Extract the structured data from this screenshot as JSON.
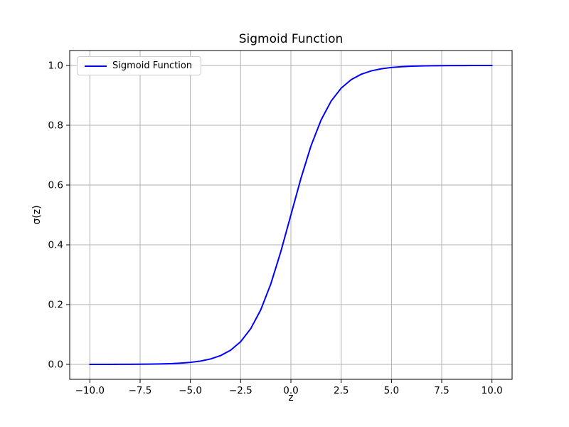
{
  "chart_data": {
    "type": "line",
    "title": "Sigmoid Function",
    "xlabel": "z",
    "ylabel": "σ(z)",
    "xlim": [
      -11,
      11
    ],
    "ylim": [
      -0.05,
      1.05
    ],
    "grid": true,
    "legend_position": "upper left",
    "colors": {
      "line": "#0000ff",
      "grid": "#b0b0b0",
      "axes": "#000000",
      "background": "#ffffff",
      "legend_border": "#cccccc"
    },
    "xticks": {
      "values": [
        -10,
        -7.5,
        -5,
        -2.5,
        0,
        2.5,
        5,
        7.5,
        10
      ],
      "labels": [
        "−10.0",
        "−7.5",
        "−5.0",
        "−2.5",
        "0.0",
        "2.5",
        "5.0",
        "7.5",
        "10.0"
      ]
    },
    "yticks": {
      "values": [
        0,
        0.2,
        0.4,
        0.6,
        0.8,
        1.0
      ],
      "labels": [
        "0.0",
        "0.2",
        "0.4",
        "0.6",
        "0.8",
        "1.0"
      ]
    },
    "series": [
      {
        "name": "Sigmoid Function",
        "color": "#0000ff",
        "x": [
          -10,
          -9.5,
          -9,
          -8.5,
          -8,
          -7.5,
          -7,
          -6.5,
          -6,
          -5.5,
          -5,
          -4.5,
          -4,
          -3.5,
          -3,
          -2.5,
          -2,
          -1.5,
          -1,
          -0.5,
          0,
          0.5,
          1,
          1.5,
          2,
          2.5,
          3,
          3.5,
          4,
          4.5,
          5,
          5.5,
          6,
          6.5,
          7,
          7.5,
          8,
          8.5,
          9,
          9.5,
          10
        ],
        "y": [
          0.0,
          0.0001,
          0.0001,
          0.0002,
          0.0003,
          0.0006,
          0.0009,
          0.0015,
          0.0025,
          0.0041,
          0.0067,
          0.011,
          0.018,
          0.0293,
          0.0474,
          0.0759,
          0.1192,
          0.1824,
          0.2689,
          0.3775,
          0.5,
          0.6225,
          0.7311,
          0.8176,
          0.8808,
          0.9241,
          0.9526,
          0.9707,
          0.982,
          0.989,
          0.9933,
          0.9959,
          0.9975,
          0.9985,
          0.9991,
          0.9994,
          0.9997,
          0.9998,
          0.9999,
          0.9999,
          1.0
        ]
      }
    ]
  }
}
